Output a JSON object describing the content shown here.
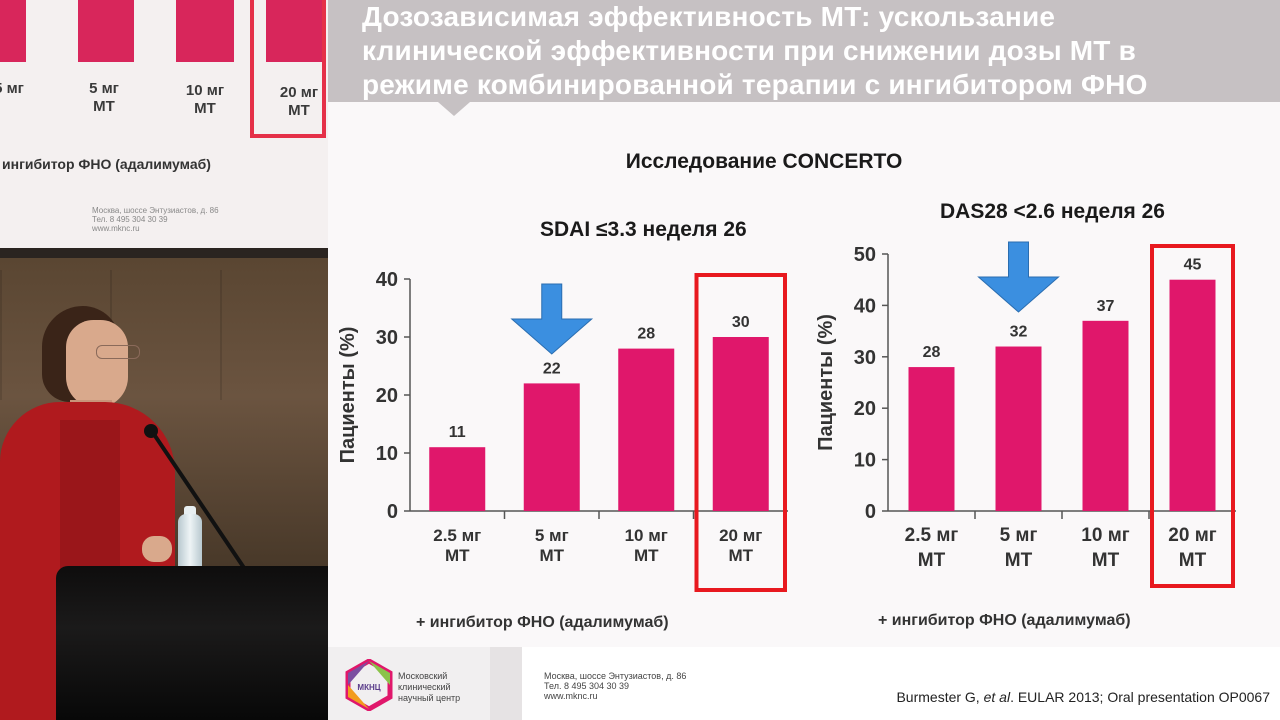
{
  "slide": {
    "title_lines": [
      "Дозозависимая эффективность МТ:  ускользание",
      "клинической эффективности при снижении дозы МТ в",
      "режиме комбинированной терапии с ингибитором ФНО"
    ],
    "study_title": "Исследование CONCERTO",
    "reference_prefix": "Burmester G, ",
    "reference_italic": "et al",
    "reference_suffix": ". EULAR 2013; Oral presentation OP0067",
    "footer": {
      "logo_abbr": "МКНЦ",
      "org_lines": [
        "Московский",
        "клинический",
        "научный центр"
      ],
      "address_lines": [
        "Москва, шоссе Энтузиастов, д. 86",
        "Тел. 8 495 304 30 39",
        "www.mknc.ru"
      ]
    }
  },
  "chart_data": [
    {
      "type": "bar",
      "title": "SDAI ≤3.3 неделя 26",
      "ylabel": "Пациенты (%)",
      "xlabel": "",
      "categories": [
        [
          "2.5 мг",
          "МТ"
        ],
        [
          "5 мг",
          "МТ"
        ],
        [
          "10 мг",
          "МТ"
        ],
        [
          "20 мг",
          "МТ"
        ]
      ],
      "values": [
        11,
        22,
        28,
        30
      ],
      "ylim": [
        0,
        40
      ],
      "yticks": [
        0,
        10,
        20,
        30,
        40
      ],
      "data_labels": true,
      "highlight_index": 3,
      "arrow_index": 1,
      "footnote": "+ ингибитор ФНО (адалимумаб)",
      "bar_color": "#e0176b",
      "highlight_color": "#e8191f",
      "arrow_color": "#3b8fe0"
    },
    {
      "type": "bar",
      "title": "DAS28 <2.6 неделя 26",
      "ylabel": "Пациенты (%)",
      "xlabel": "",
      "categories": [
        [
          "2.5 мг",
          "МТ"
        ],
        [
          "5 мг",
          "МТ"
        ],
        [
          "10 мг",
          "МТ"
        ],
        [
          "20 мг",
          "МТ"
        ]
      ],
      "values": [
        28,
        32,
        37,
        45
      ],
      "ylim": [
        0,
        50
      ],
      "yticks": [
        0,
        10,
        20,
        30,
        40,
        50
      ],
      "data_labels": true,
      "highlight_index": 3,
      "arrow_index": 1,
      "footnote": "+ ингибитор ФНО (адалимумаб)",
      "bar_color": "#e0176b",
      "highlight_color": "#e8191f",
      "arrow_color": "#3b8fe0"
    }
  ],
  "video_crop": {
    "tick_labels": [
      [
        "5 мг",
        "МТ"
      ],
      [
        "10 мг",
        "МТ"
      ],
      [
        "20 мг",
        "МТ"
      ]
    ],
    "caption": "ингибитор ФНО (адалимумаб)",
    "address_lines": [
      "Москва, шоссе Энтузиастов, д. 86",
      "Тел. 8 495 304 30 39",
      "www.mknc.ru"
    ]
  }
}
